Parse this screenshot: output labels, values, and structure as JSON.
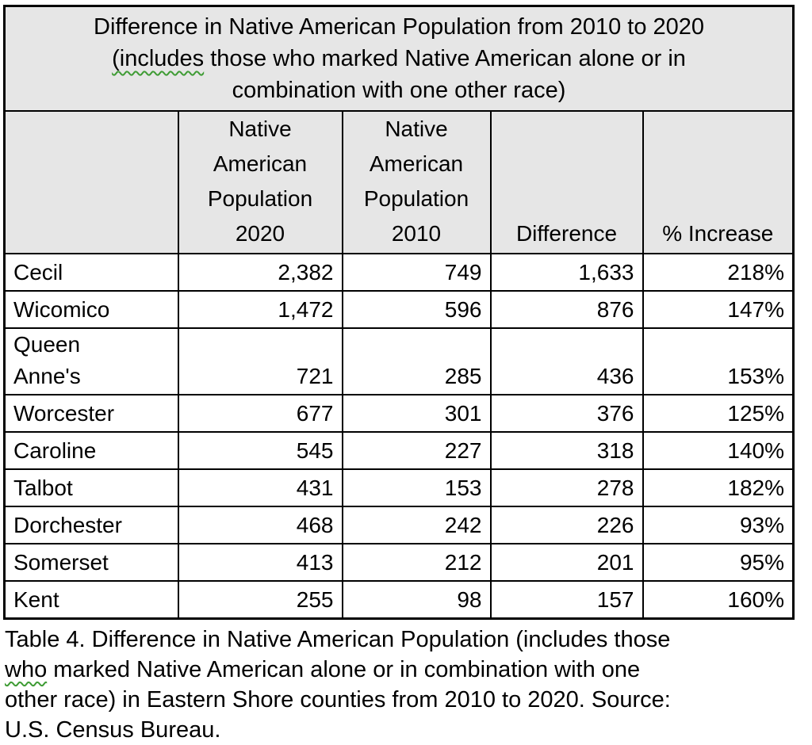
{
  "colors": {
    "header_bg": "#e6e6e6",
    "border": "#000000",
    "spellcheck_squiggle_green": "#3f9c35",
    "text": "#000000"
  },
  "table": {
    "title": {
      "line1": "Difference in Native American Population from 2010 to 2020",
      "line2_flagged": "(includes",
      "line2_rest": " those who marked Native American alone or in",
      "line3": "combination with one other race)"
    },
    "columns": [
      "",
      "Native\nAmerican\nPopulation\n2020",
      "Native\nAmerican\nPopulation\n2010",
      "Difference",
      "% Increase"
    ],
    "rows": [
      {
        "county": "Cecil",
        "pop2020": "2,382",
        "pop2010": "749",
        "difference": "1,633",
        "increase": "218%"
      },
      {
        "county": "Wicomico",
        "pop2020": "1,472",
        "pop2010": "596",
        "difference": "876",
        "increase": "147%"
      },
      {
        "county": "Queen\nAnne's",
        "pop2020": "721",
        "pop2010": "285",
        "difference": "436",
        "increase": "153%"
      },
      {
        "county": "Worcester",
        "pop2020": "677",
        "pop2010": "301",
        "difference": "376",
        "increase": "125%"
      },
      {
        "county": "Caroline",
        "pop2020": "545",
        "pop2010": "227",
        "difference": "318",
        "increase": "140%"
      },
      {
        "county": "Talbot",
        "pop2020": "431",
        "pop2010": "153",
        "difference": "278",
        "increase": "182%"
      },
      {
        "county": "Dorchester",
        "pop2020": "468",
        "pop2010": "242",
        "difference": "226",
        "increase": "93%"
      },
      {
        "county": "Somerset",
        "pop2020": "413",
        "pop2010": "212",
        "difference": "201",
        "increase": "95%"
      },
      {
        "county": "Kent",
        "pop2020": "255",
        "pop2010": "98",
        "difference": "157",
        "increase": "160%"
      }
    ]
  },
  "caption": {
    "line1": "Table 4. Difference in Native American Population (includes those",
    "line2_flagged": "who",
    "line2_rest": " marked Native American alone or in combination with one",
    "line3": "other race) in Eastern Shore counties from 2010 to 2020. Source:",
    "line4": "U.S. Census Bureau."
  }
}
